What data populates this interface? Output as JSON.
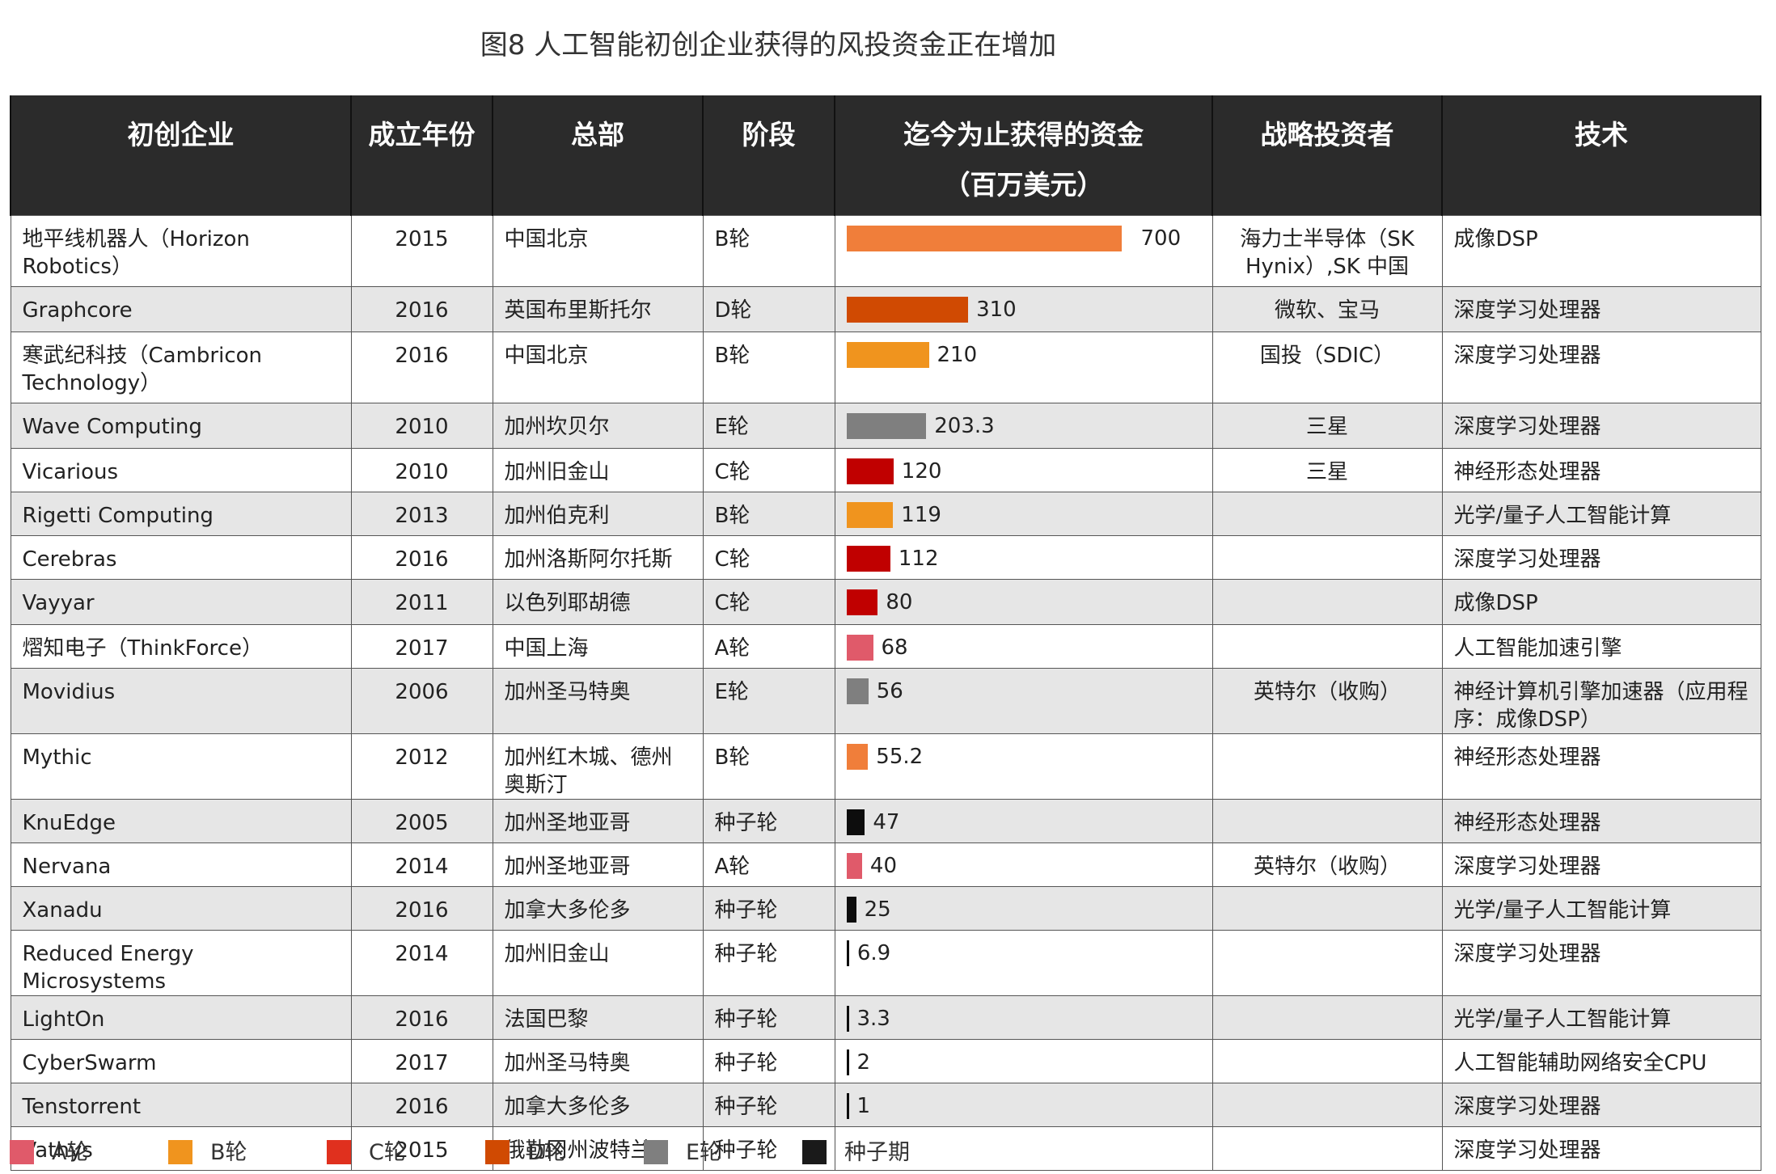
{
  "title": "图8  人工智能初创企业获得的风投资金正在增加",
  "headers": {
    "company": "初创企业",
    "year": "成立年份",
    "hq": "总部",
    "stage": "阶段",
    "funding": "迄今为止获得的资金",
    "funding_unit": "（百万美元）",
    "investor": "战略投资者",
    "tech": "技术"
  },
  "legend": [
    {
      "label": "A轮",
      "color": "#e05a6a"
    },
    {
      "label": "B轮",
      "color": "#f0941e"
    },
    {
      "label": "C轮",
      "color": "#e0301e"
    },
    {
      "label": "D轮",
      "color": "#d04a02"
    },
    {
      "label": "E轮",
      "color": "#7f7f7f"
    },
    {
      "label": "种子期",
      "color": "#1a1a1a"
    }
  ],
  "rows": [
    {
      "company": "地平线机器人（Horizon Robotics）",
      "year": "2015",
      "hq": "中国北京",
      "stage": "B轮",
      "funding": "700",
      "investor": "海力士半导体（SK Hynix）,SK 中国",
      "tech": "成像DSP"
    },
    {
      "company": "Graphcore",
      "year": "2016",
      "hq": "英国布里斯托尔",
      "stage": "D轮",
      "funding": "310",
      "investor": "微软、宝马",
      "tech": "深度学习处理器"
    },
    {
      "company": "寒武纪科技（Cambricon Technology）",
      "year": "2016",
      "hq": "中国北京",
      "stage": "B轮",
      "funding": "210",
      "investor": "国投（SDIC）",
      "tech": "深度学习处理器"
    },
    {
      "company": "Wave Computing",
      "year": "2010",
      "hq": "加州坎贝尔",
      "stage": "E轮",
      "funding": "203.3",
      "investor": "三星",
      "tech": "深度学习处理器"
    },
    {
      "company": "Vicarious",
      "year": "2010",
      "hq": "加州旧金山",
      "stage": "C轮",
      "funding": "120",
      "investor": "三星",
      "tech": "神经形态处理器"
    },
    {
      "company": "Rigetti Computing",
      "year": "2013",
      "hq": "加州伯克利",
      "stage": "B轮",
      "funding": "119",
      "investor": "",
      "tech": "光学/量子人工智能计算"
    },
    {
      "company": "Cerebras",
      "year": "2016",
      "hq": "加州洛斯阿尔托斯",
      "stage": "C轮",
      "funding": "112",
      "investor": "",
      "tech": "深度学习处理器"
    },
    {
      "company": "Vayyar",
      "year": "2011",
      "hq": "以色列耶胡德",
      "stage": "C轮",
      "funding": "80",
      "investor": "",
      "tech": "成像DSP"
    },
    {
      "company": "熠知电子（ThinkForce）",
      "year": "2017",
      "hq": "中国上海",
      "stage": "A轮",
      "funding": "68",
      "investor": "",
      "tech": "人工智能加速引擎"
    },
    {
      "company": "Movidius",
      "year": "2006",
      "hq": "加州圣马特奥",
      "stage": "E轮",
      "funding": "56",
      "investor": "英特尔（收购）",
      "tech": "神经计算机引擎加速器（应用程序：成像DSP）"
    },
    {
      "company": "Mythic",
      "year": "2012",
      "hq": "加州红木城、德州奥斯汀",
      "stage": "B轮",
      "funding": "55.2",
      "investor": "",
      "tech": "神经形态处理器"
    },
    {
      "company": "KnuEdge",
      "year": "2005",
      "hq": "加州圣地亚哥",
      "stage": "种子轮",
      "funding": "47",
      "investor": "",
      "tech": "神经形态处理器"
    },
    {
      "company": "Nervana",
      "year": "2014",
      "hq": "加州圣地亚哥",
      "stage": "A轮",
      "funding": "40",
      "investor": "英特尔（收购）",
      "tech": "深度学习处理器"
    },
    {
      "company": "Xanadu",
      "year": "2016",
      "hq": "加拿大多伦多",
      "stage": "种子轮",
      "funding": "25",
      "investor": "",
      "tech": "光学/量子人工智能计算"
    },
    {
      "company": "Reduced Energy Microsystems",
      "year": "2014",
      "hq": "加州旧金山",
      "stage": "种子轮",
      "funding": "6.9",
      "investor": "",
      "tech": "深度学习处理器"
    },
    {
      "company": "LightOn",
      "year": "2016",
      "hq": "法国巴黎",
      "stage": "种子轮",
      "funding": "3.3",
      "investor": "",
      "tech": "光学/量子人工智能计算"
    },
    {
      "company": "CyberSwarm",
      "year": "2017",
      "hq": "加州圣马特奥",
      "stage": "种子轮",
      "funding": "2",
      "investor": "",
      "tech": "人工智能辅助网络安全CPU"
    },
    {
      "company": "Tenstorrent",
      "year": "2016",
      "hq": "加拿大多伦多",
      "stage": "种子轮",
      "funding": "1",
      "investor": "",
      "tech": "深度学习处理器"
    },
    {
      "company": "Vathys",
      "year": "2015",
      "hq": "俄勒冈州波特兰",
      "stage": "种子轮",
      "funding": "",
      "investor": "",
      "tech": "深度学习处理器"
    }
  ],
  "chart_data": {
    "type": "bar",
    "title": "图8  人工智能初创企业获得的风投资金正在增加",
    "ylabel": "迄今为止获得的资金（百万美元）",
    "categories": [
      "地平线机器人（Horizon Robotics）",
      "Graphcore",
      "寒武纪科技（Cambricon Technology）",
      "Wave Computing",
      "Vicarious",
      "Rigetti Computing",
      "Cerebras",
      "Vayyar",
      "熠知电子（ThinkForce）",
      "Movidius",
      "Mythic",
      "KnuEdge",
      "Nervana",
      "Xanadu",
      "Reduced Energy Microsystems",
      "LightOn",
      "CyberSwarm",
      "Tenstorrent",
      "Vathys"
    ],
    "values": [
      700,
      310,
      210,
      203.3,
      120,
      119,
      112,
      80,
      68,
      56,
      55.2,
      47,
      40,
      25,
      6.9,
      3.3,
      2,
      1,
      null
    ],
    "bar_colors": [
      "#f07e3a",
      "#d04a02",
      "#f0941e",
      "#7f7f7f",
      "#c00000",
      "#f0941e",
      "#c00000",
      "#c00000",
      "#e05a6a",
      "#7f7f7f",
      "#f07e3a",
      "#0d0d0d",
      "#e05a6a",
      "#0d0d0d",
      "#0d0d0d",
      "#0d0d0d",
      "#0d0d0d",
      "#0d0d0d",
      null
    ],
    "orientation": "horizontal",
    "legend_position": "bottom"
  }
}
